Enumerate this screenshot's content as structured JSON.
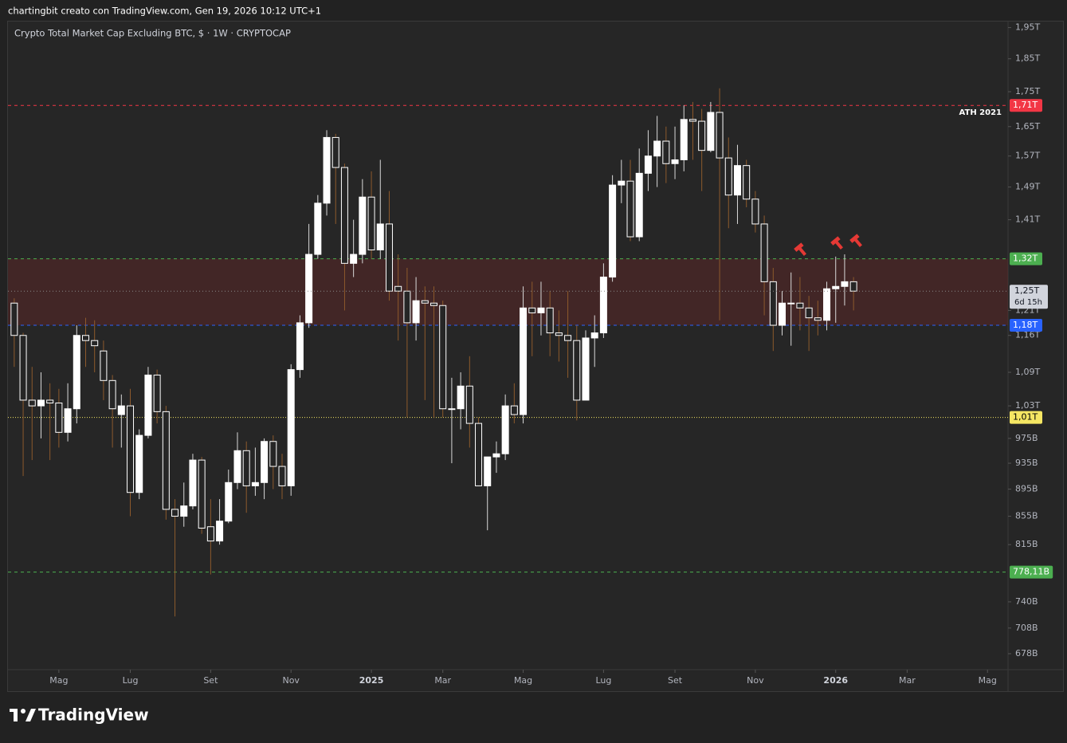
{
  "header": {
    "attribution": "chartingbit creato con TradingView.com, Gen 19, 2026 10:12 UTC+1",
    "brand": "TradingView"
  },
  "chart_data": {
    "type": "candlestick",
    "title": "Crypto Total Market Cap Excluding BTC, $ · 1W · CRYPTOCAP",
    "log_scale": true,
    "up_color": "#ffffff",
    "down_color": "#262626",
    "outline_color": "#ffffff",
    "up_wick_color": "#d9d9d9",
    "down_wick_color": "#8d5a2c",
    "open": [
      1225,
      1160,
      1040,
      1030,
      1040,
      1035,
      985,
      1025,
      1160,
      1150,
      1130,
      1075,
      1015,
      1030,
      890,
      980,
      1085,
      1020,
      865,
      855,
      870,
      940,
      840,
      820,
      848,
      905,
      955,
      900,
      905,
      970,
      930,
      900,
      1095,
      1185,
      1330,
      1450,
      1620,
      1540,
      1310,
      1330,
      1465,
      1340,
      1400,
      1260,
      1250,
      1185,
      1230,
      1225,
      1220,
      1025,
      1025,
      1065,
      1000,
      900,
      945,
      950,
      1030,
      1015,
      1215,
      1205,
      1215,
      1165,
      1160,
      1150,
      1040,
      1155,
      1165,
      1280,
      1495,
      1505,
      1370,
      1525,
      1570,
      1610,
      1550,
      1560,
      1670,
      1665,
      1585,
      1690,
      1565,
      1470,
      1545,
      1460,
      1400,
      1270,
      1180,
      1225,
      1225,
      1215,
      1195,
      1190,
      1255,
      1260,
      1270
    ],
    "high": [
      1235,
      1165,
      1100,
      1090,
      1070,
      1060,
      1070,
      1180,
      1195,
      1190,
      1150,
      1085,
      1050,
      1060,
      990,
      1100,
      1095,
      1030,
      880,
      905,
      950,
      945,
      880,
      880,
      925,
      985,
      970,
      960,
      975,
      980,
      950,
      1105,
      1200,
      1400,
      1470,
      1640,
      1630,
      1550,
      1410,
      1510,
      1530,
      1560,
      1480,
      1330,
      1300,
      1280,
      1260,
      1260,
      1230,
      1080,
      1090,
      1120,
      1010,
      945,
      970,
      1050,
      1070,
      1260,
      1270,
      1270,
      1250,
      1210,
      1250,
      1180,
      1170,
      1200,
      1310,
      1520,
      1560,
      1560,
      1590,
      1640,
      1680,
      1650,
      1650,
      1710,
      1720,
      1700,
      1720,
      1760,
      1620,
      1600,
      1560,
      1480,
      1420,
      1300,
      1250,
      1290,
      1280,
      1240,
      1230,
      1270,
      1325,
      1330,
      1280
    ],
    "low": [
      1100,
      915,
      940,
      975,
      940,
      960,
      970,
      1000,
      1100,
      1090,
      1040,
      960,
      960,
      855,
      880,
      975,
      1000,
      850,
      722,
      840,
      865,
      830,
      775,
      815,
      845,
      895,
      860,
      885,
      880,
      895,
      880,
      885,
      1080,
      1175,
      1320,
      1420,
      1400,
      1210,
      1280,
      1310,
      1320,
      1320,
      1230,
      1150,
      1010,
      1150,
      1040,
      1010,
      1010,
      935,
      990,
      960,
      900,
      835,
      920,
      940,
      1000,
      1000,
      1120,
      1160,
      1120,
      1110,
      1080,
      1005,
      1040,
      1100,
      1155,
      1270,
      1450,
      1360,
      1360,
      1480,
      1490,
      1500,
      1510,
      1530,
      1560,
      1480,
      1580,
      1190,
      1390,
      1400,
      1440,
      1380,
      1200,
      1130,
      1160,
      1140,
      1170,
      1130,
      1160,
      1170,
      1185,
      1220,
      1210
    ],
    "close": [
      1160,
      1040,
      1030,
      1040,
      1035,
      985,
      1025,
      1160,
      1150,
      1140,
      1075,
      1025,
      1030,
      890,
      980,
      1085,
      1020,
      865,
      855,
      870,
      940,
      838,
      820,
      848,
      905,
      955,
      900,
      905,
      970,
      930,
      900,
      1095,
      1185,
      1330,
      1450,
      1620,
      1540,
      1310,
      1330,
      1465,
      1340,
      1400,
      1250,
      1250,
      1185,
      1230,
      1225,
      1220,
      1025,
      1025,
      1065,
      1000,
      900,
      945,
      950,
      1030,
      1015,
      1215,
      1205,
      1215,
      1165,
      1160,
      1150,
      1040,
      1155,
      1165,
      1280,
      1495,
      1505,
      1370,
      1525,
      1570,
      1610,
      1550,
      1560,
      1670,
      1665,
      1585,
      1690,
      1565,
      1470,
      1545,
      1460,
      1400,
      1270,
      1180,
      1225,
      1225,
      1215,
      1195,
      1190,
      1255,
      1260,
      1270,
      1250
    ],
    "ylim": [
      660,
      1970
    ],
    "yticks": [
      {
        "value": 1950,
        "label": "1,95T"
      },
      {
        "value": 1850,
        "label": "1,85T"
      },
      {
        "value": 1750,
        "label": "1,75T"
      },
      {
        "value": 1650,
        "label": "1,65T"
      },
      {
        "value": 1570,
        "label": "1,57T"
      },
      {
        "value": 1490,
        "label": "1,49T"
      },
      {
        "value": 1410,
        "label": "1,41T"
      },
      {
        "value": 1210,
        "label": "1,21T"
      },
      {
        "value": 1160,
        "label": "1,16T"
      },
      {
        "value": 1090,
        "label": "1,09T"
      },
      {
        "value": 1030,
        "label": "1,03T"
      },
      {
        "value": 975,
        "label": "975B"
      },
      {
        "value": 935,
        "label": "935B"
      },
      {
        "value": 895,
        "label": "895B"
      },
      {
        "value": 855,
        "label": "855B"
      },
      {
        "value": 815,
        "label": "815B"
      },
      {
        "value": 740,
        "label": "740B"
      },
      {
        "value": 708,
        "label": "708B"
      },
      {
        "value": 678,
        "label": "678B"
      }
    ],
    "xlim": [
      -0.7,
      111.3
    ],
    "xticks": [
      {
        "value": 5,
        "label": "Mag"
      },
      {
        "value": 13,
        "label": "Lug"
      },
      {
        "value": 22,
        "label": "Set"
      },
      {
        "value": 31,
        "label": "Nov"
      },
      {
        "value": 40,
        "label": "2025"
      },
      {
        "value": 48,
        "label": "Mar"
      },
      {
        "value": 57,
        "label": "Mag"
      },
      {
        "value": 66,
        "label": "Lug"
      },
      {
        "value": 74,
        "label": "Set"
      },
      {
        "value": 83,
        "label": "Nov"
      },
      {
        "value": 92,
        "label": "2026"
      },
      {
        "value": 100,
        "label": "Mar"
      },
      {
        "value": 109,
        "label": "Mag"
      }
    ],
    "zone": {
      "low": 1180,
      "high": 1320,
      "color": "rgba(120,40,40,0.35)"
    },
    "levels": [
      {
        "value": 1710,
        "label": "1,71T",
        "color": "#f23645",
        "dash": "4 4",
        "annotation": "ATH 2021"
      },
      {
        "value": 1320,
        "label": "1,32T",
        "color": "#4caf50",
        "dash": "4 4"
      },
      {
        "value": 1180,
        "label": "1,18T",
        "color": "#2962ff",
        "dash": "4 4"
      },
      {
        "value": 1010,
        "label": "1,01T",
        "color": "#f5e663",
        "dash": "1 2"
      },
      {
        "value": 778.11,
        "label": "778,11B",
        "color": "#4caf50",
        "dash": "4 4"
      }
    ],
    "current": {
      "value": 1250,
      "label": "1,25T",
      "countdown": "6d 15h"
    }
  }
}
